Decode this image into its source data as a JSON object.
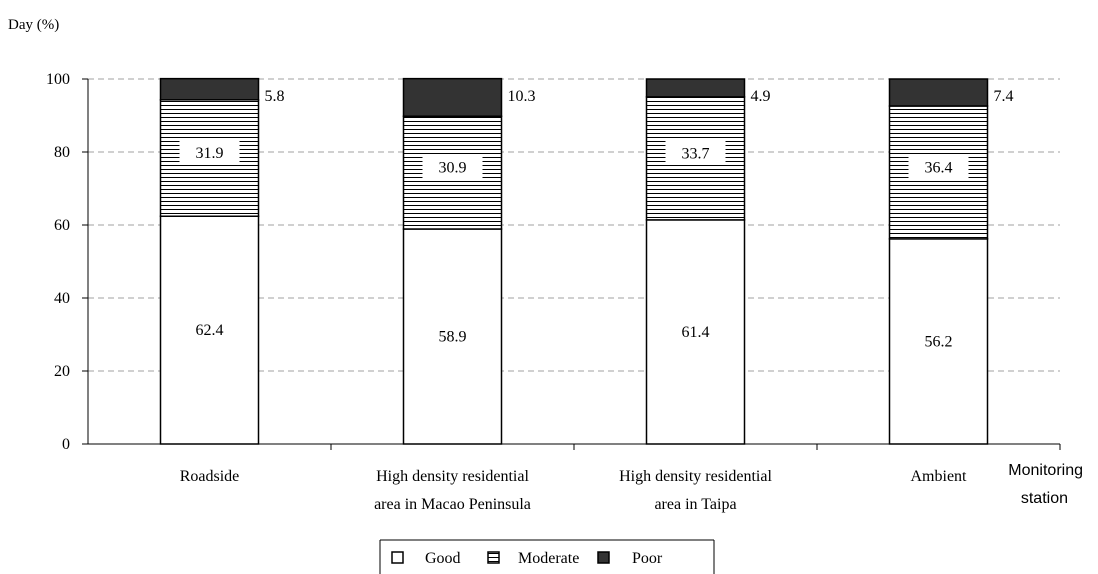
{
  "chart_data": {
    "type": "bar",
    "stacked": true,
    "y_axis_label": "Day (%)",
    "x_axis_label_line1": "Monitoring",
    "x_axis_label_line2": "station",
    "ylim": [
      0,
      100
    ],
    "yticks": [
      0,
      20,
      40,
      60,
      80,
      100
    ],
    "grid": "horizontal dashed",
    "legend_position": "bottom-center",
    "categories": [
      [
        "Roadside"
      ],
      [
        "High density residential",
        "area in Macao Peninsula"
      ],
      [
        "High density residential",
        "area in Taipa"
      ],
      [
        "Ambient"
      ]
    ],
    "series": [
      {
        "name": "Good",
        "values": [
          62.4,
          58.9,
          61.4,
          56.2
        ],
        "fill": "#ffffff",
        "pattern": "none"
      },
      {
        "name": "Moderate",
        "values": [
          31.9,
          30.9,
          33.7,
          36.4
        ],
        "fill": "#ffffff",
        "pattern": "horizontal-lines"
      },
      {
        "name": "Poor",
        "values": [
          5.8,
          10.3,
          4.9,
          7.4
        ],
        "fill": "#333333",
        "pattern": "none"
      }
    ]
  }
}
